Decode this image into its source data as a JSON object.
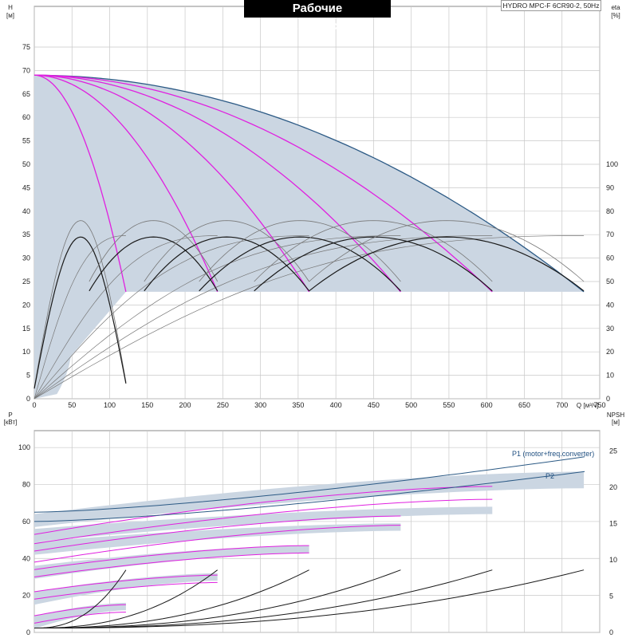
{
  "title": "Рабочие характеристики",
  "model": "HYDRO MPC-F 6CR90-2, 50Hz",
  "colors": {
    "envelope_fill": "#cbd6e2",
    "envelope_line": "#2c5a85",
    "freq_curve": "#e020e0",
    "eta_curve": "#1a1a1a",
    "eta_curve_light": "#777777",
    "grid": "#c8c8c8"
  },
  "chart_data": [
    {
      "type": "line",
      "name": "head",
      "ylabel": "H",
      "yunit": "[м]",
      "xlabel": "Q",
      "xunit": "[м³/ч]",
      "y2label": "eta",
      "y2unit": "[%]",
      "xlim": [
        0,
        750
      ],
      "ylim": [
        0,
        80
      ],
      "y2lim": [
        0,
        110
      ],
      "xticks": [
        0,
        50,
        100,
        150,
        200,
        250,
        300,
        350,
        400,
        450,
        500,
        550,
        600,
        650,
        700,
        750
      ],
      "yticks": [
        0,
        5,
        10,
        15,
        20,
        25,
        30,
        35,
        40,
        45,
        50,
        55,
        60,
        65,
        70,
        75
      ],
      "y2ticks": [
        0,
        10,
        20,
        30,
        40,
        50,
        60,
        70,
        80,
        90,
        100
      ],
      "pump_count": [
        1,
        2,
        3,
        4,
        5,
        6
      ],
      "shutoff_head": 69,
      "max_flow_per_pump": 121.5,
      "min_head": 22.8,
      "eta_peak": 76,
      "eta_min_end": 50,
      "grid": true
    },
    {
      "type": "line",
      "name": "power",
      "ylabel": "P",
      "yunit": "[кВт]",
      "y2label": "NPSH",
      "y2unit": "[м]",
      "xlim": [
        0,
        750
      ],
      "ylim": [
        0,
        105
      ],
      "y2lim": [
        0,
        27
      ],
      "yticks": [
        0,
        20,
        40,
        60,
        80,
        100
      ],
      "y2ticks": [
        0,
        5,
        10,
        15,
        20,
        25
      ],
      "series": [
        {
          "name": "P1 (motor+freq.converter)",
          "x": [
            0,
            730
          ],
          "y": [
            65,
            95
          ]
        },
        {
          "name": "P2",
          "x": [
            0,
            730
          ],
          "y": [
            60,
            87
          ]
        }
      ],
      "npsh_max": 8,
      "grid": true
    }
  ]
}
